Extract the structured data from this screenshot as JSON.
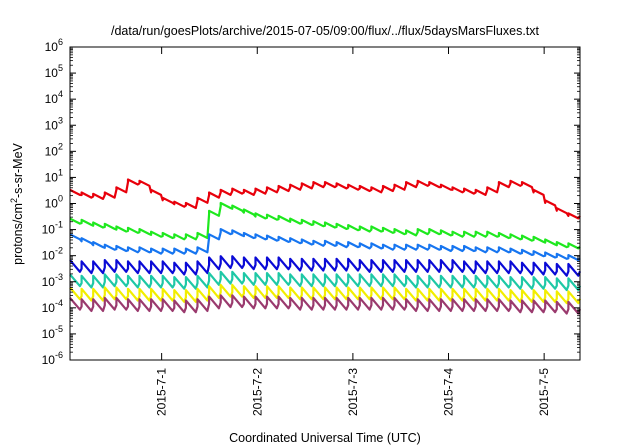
{
  "chart_data": {
    "type": "line",
    "title": "/data/run/goesPlots/archive/2015-07-05/09:00/flux/../flux/5daysMarsFluxes.txt",
    "xlabel": "Coordinated Universal Time (UTC)",
    "ylabel_parts": [
      "protons/cm",
      "2",
      "-s-sr-MeV"
    ],
    "y_scale": "log",
    "ylim_exp": [
      -6,
      6
    ],
    "y_ticks": [
      {
        "base": "10",
        "exp": "6"
      },
      {
        "base": "10",
        "exp": "5"
      },
      {
        "base": "10",
        "exp": "4"
      },
      {
        "base": "10",
        "exp": "3"
      },
      {
        "base": "10",
        "exp": "2"
      },
      {
        "base": "10",
        "exp": "1"
      },
      {
        "base": "10",
        "exp": "0"
      },
      {
        "base": "10",
        "exp": "-1"
      },
      {
        "base": "10",
        "exp": "-2"
      },
      {
        "base": "10",
        "exp": "-3"
      },
      {
        "base": "10",
        "exp": "-4"
      },
      {
        "base": "10",
        "exp": "-5"
      },
      {
        "base": "10",
        "exp": "-6"
      }
    ],
    "xlim": [
      "2015-06-30 01:00",
      "2015-07-05 09:00"
    ],
    "x_tick_labels": [
      "2015-7-1",
      "2015-7-2",
      "2015-7-3",
      "2015-7-4",
      "2015-7-5"
    ],
    "grid": false,
    "series": [
      {
        "color": "#e8000b",
        "approx_log10_values": [
          0.4,
          0.3,
          0.25,
          0.3,
          0.5,
          0.8,
          0.75,
          0.4,
          0.1,
          -0.05,
          -0.1,
          0.1,
          0.3,
          0.4,
          0.45,
          0.4,
          0.45,
          0.5,
          0.55,
          0.6,
          0.65,
          0.7,
          0.7,
          0.65,
          0.6,
          0.55,
          0.5,
          0.55,
          0.6,
          0.7,
          0.75,
          0.7,
          0.6,
          0.5,
          0.45,
          0.4,
          0.5,
          0.7,
          0.75,
          0.7,
          0.4,
          0.0,
          -0.3,
          -0.5
        ]
      },
      {
        "color": "#1ee81e",
        "approx_log10_values": [
          -0.7,
          -0.75,
          -0.85,
          -0.9,
          -1.0,
          -1.05,
          -1.1,
          -1.2,
          -1.25,
          -1.3,
          -1.3,
          -1.25,
          -0.4,
          -0.1,
          -0.2,
          -0.35,
          -0.5,
          -0.55,
          -0.6,
          -0.7,
          -0.75,
          -0.8,
          -0.85,
          -0.9,
          -0.95,
          -1.0,
          -1.0,
          -1.05,
          -1.1,
          -1.15,
          -1.1,
          -1.1,
          -1.15,
          -1.2,
          -1.2,
          -1.2,
          -1.2,
          -1.25,
          -1.3,
          -1.35,
          -1.4,
          -1.5,
          -1.6,
          -1.65
        ]
      },
      {
        "color": "#1675f0",
        "approx_log10_values": [
          -1.3,
          -1.45,
          -1.6,
          -1.7,
          -1.75,
          -1.8,
          -1.8,
          -1.85,
          -1.85,
          -1.85,
          -1.85,
          -1.8,
          -1.3,
          -1.1,
          -1.15,
          -1.25,
          -1.3,
          -1.35,
          -1.4,
          -1.45,
          -1.5,
          -1.55,
          -1.55,
          -1.6,
          -1.6,
          -1.65,
          -1.65,
          -1.7,
          -1.7,
          -1.7,
          -1.7,
          -1.7,
          -1.75,
          -1.75,
          -1.75,
          -1.8,
          -1.8,
          -1.8,
          -1.85,
          -1.9,
          -1.95,
          -2.0,
          -2.05,
          -2.1
        ]
      },
      {
        "color": "#0a0ad6",
        "approx_log10_values": [
          -2.45,
          -2.5,
          -2.5,
          -2.45,
          -2.45,
          -2.5,
          -2.5,
          -2.5,
          -2.5,
          -2.55,
          -2.55,
          -2.5,
          -2.35,
          -2.3,
          -2.3,
          -2.35,
          -2.35,
          -2.35,
          -2.35,
          -2.4,
          -2.4,
          -2.4,
          -2.4,
          -2.4,
          -2.4,
          -2.45,
          -2.45,
          -2.45,
          -2.45,
          -2.45,
          -2.45,
          -2.45,
          -2.45,
          -2.45,
          -2.5,
          -2.5,
          -2.5,
          -2.5,
          -2.5,
          -2.55,
          -2.55,
          -2.55,
          -2.6,
          -2.6
        ]
      },
      {
        "color": "#1ec8a6",
        "approx_log10_values": [
          -3.0,
          -3.05,
          -3.05,
          -3.0,
          -3.0,
          -3.05,
          -3.05,
          -3.05,
          -3.05,
          -3.1,
          -3.1,
          -3.05,
          -2.95,
          -2.9,
          -2.9,
          -2.95,
          -2.95,
          -2.95,
          -2.95,
          -3.0,
          -3.0,
          -3.0,
          -3.0,
          -3.0,
          -3.0,
          -3.0,
          -3.0,
          -3.0,
          -3.0,
          -3.05,
          -3.05,
          -3.05,
          -3.05,
          -3.05,
          -3.05,
          -3.05,
          -3.05,
          -3.05,
          -3.1,
          -3.1,
          -3.1,
          -3.1,
          -3.15,
          -3.15
        ]
      },
      {
        "color": "#f2ee00",
        "approx_log10_values": [
          -3.5,
          -3.55,
          -3.55,
          -3.5,
          -3.5,
          -3.55,
          -3.55,
          -3.55,
          -3.55,
          -3.6,
          -3.6,
          -3.55,
          -3.45,
          -3.4,
          -3.4,
          -3.45,
          -3.45,
          -3.45,
          -3.45,
          -3.5,
          -3.5,
          -3.5,
          -3.5,
          -3.5,
          -3.5,
          -3.5,
          -3.5,
          -3.5,
          -3.5,
          -3.55,
          -3.55,
          -3.55,
          -3.55,
          -3.55,
          -3.55,
          -3.55,
          -3.55,
          -3.55,
          -3.6,
          -3.6,
          -3.6,
          -3.6,
          -3.65,
          -3.65
        ]
      },
      {
        "color": "#9a3a6e",
        "approx_log10_values": [
          -3.9,
          -3.95,
          -3.95,
          -3.9,
          -3.9,
          -3.95,
          -3.95,
          -3.95,
          -3.95,
          -4.0,
          -4.0,
          -3.95,
          -3.85,
          -3.8,
          -3.8,
          -3.85,
          -3.85,
          -3.85,
          -3.85,
          -3.9,
          -3.9,
          -3.9,
          -3.9,
          -3.9,
          -3.9,
          -3.9,
          -3.9,
          -3.9,
          -3.9,
          -3.95,
          -3.95,
          -3.95,
          -3.95,
          -3.95,
          -3.95,
          -3.95,
          -3.95,
          -3.95,
          -4.0,
          -4.0,
          -4.0,
          -4.0,
          -4.05,
          -4.05
        ]
      }
    ]
  }
}
